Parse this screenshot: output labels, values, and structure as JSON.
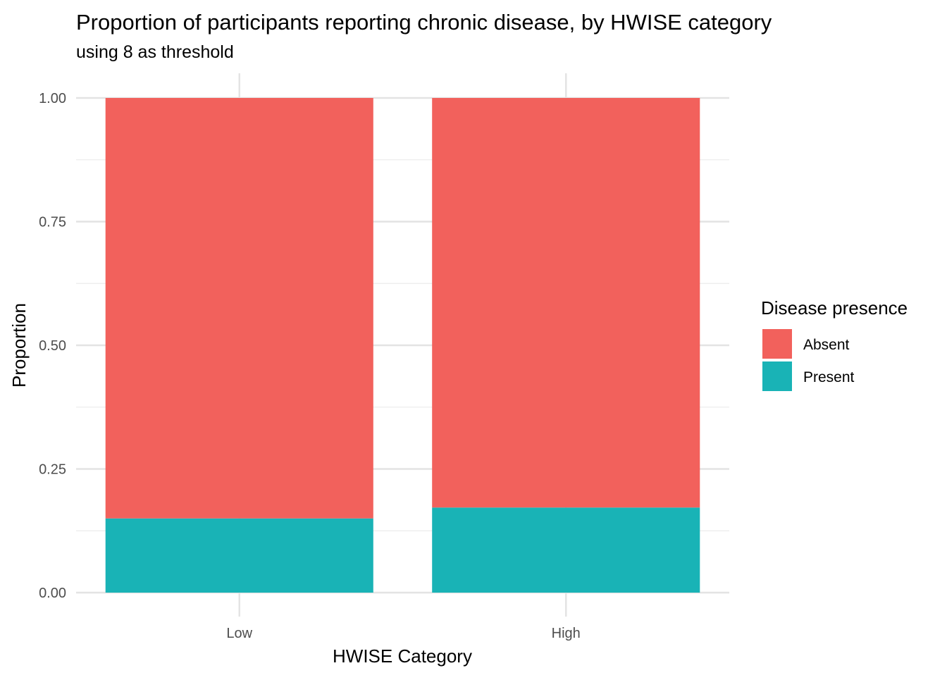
{
  "title": "Proportion of participants reporting chronic disease, by HWISE category",
  "subtitle": "using 8 as threshold",
  "chart_data": {
    "type": "bar",
    "stacked": true,
    "title": "Proportion of participants reporting chronic disease, by HWISE category",
    "subtitle": "using 8 as threshold",
    "xlabel": "HWISE Category",
    "ylabel": "Proportion",
    "categories": [
      "Low",
      "High"
    ],
    "series": [
      {
        "name": "Present",
        "color": "#19B3B6",
        "values": [
          0.15,
          0.172
        ]
      },
      {
        "name": "Absent",
        "color": "#F2615C",
        "values": [
          0.85,
          0.828
        ]
      }
    ],
    "ylim": [
      0,
      1
    ],
    "yticks": [
      "0.00",
      "0.25",
      "0.50",
      "0.75",
      "1.00"
    ],
    "ytick_values": [
      0,
      0.25,
      0.5,
      0.75,
      1
    ],
    "grid": true,
    "legend": {
      "title": "Disease presence",
      "position": "right",
      "entries": [
        {
          "label": "Absent",
          "color": "#F2615C"
        },
        {
          "label": "Present",
          "color": "#19B3B6"
        }
      ]
    }
  }
}
